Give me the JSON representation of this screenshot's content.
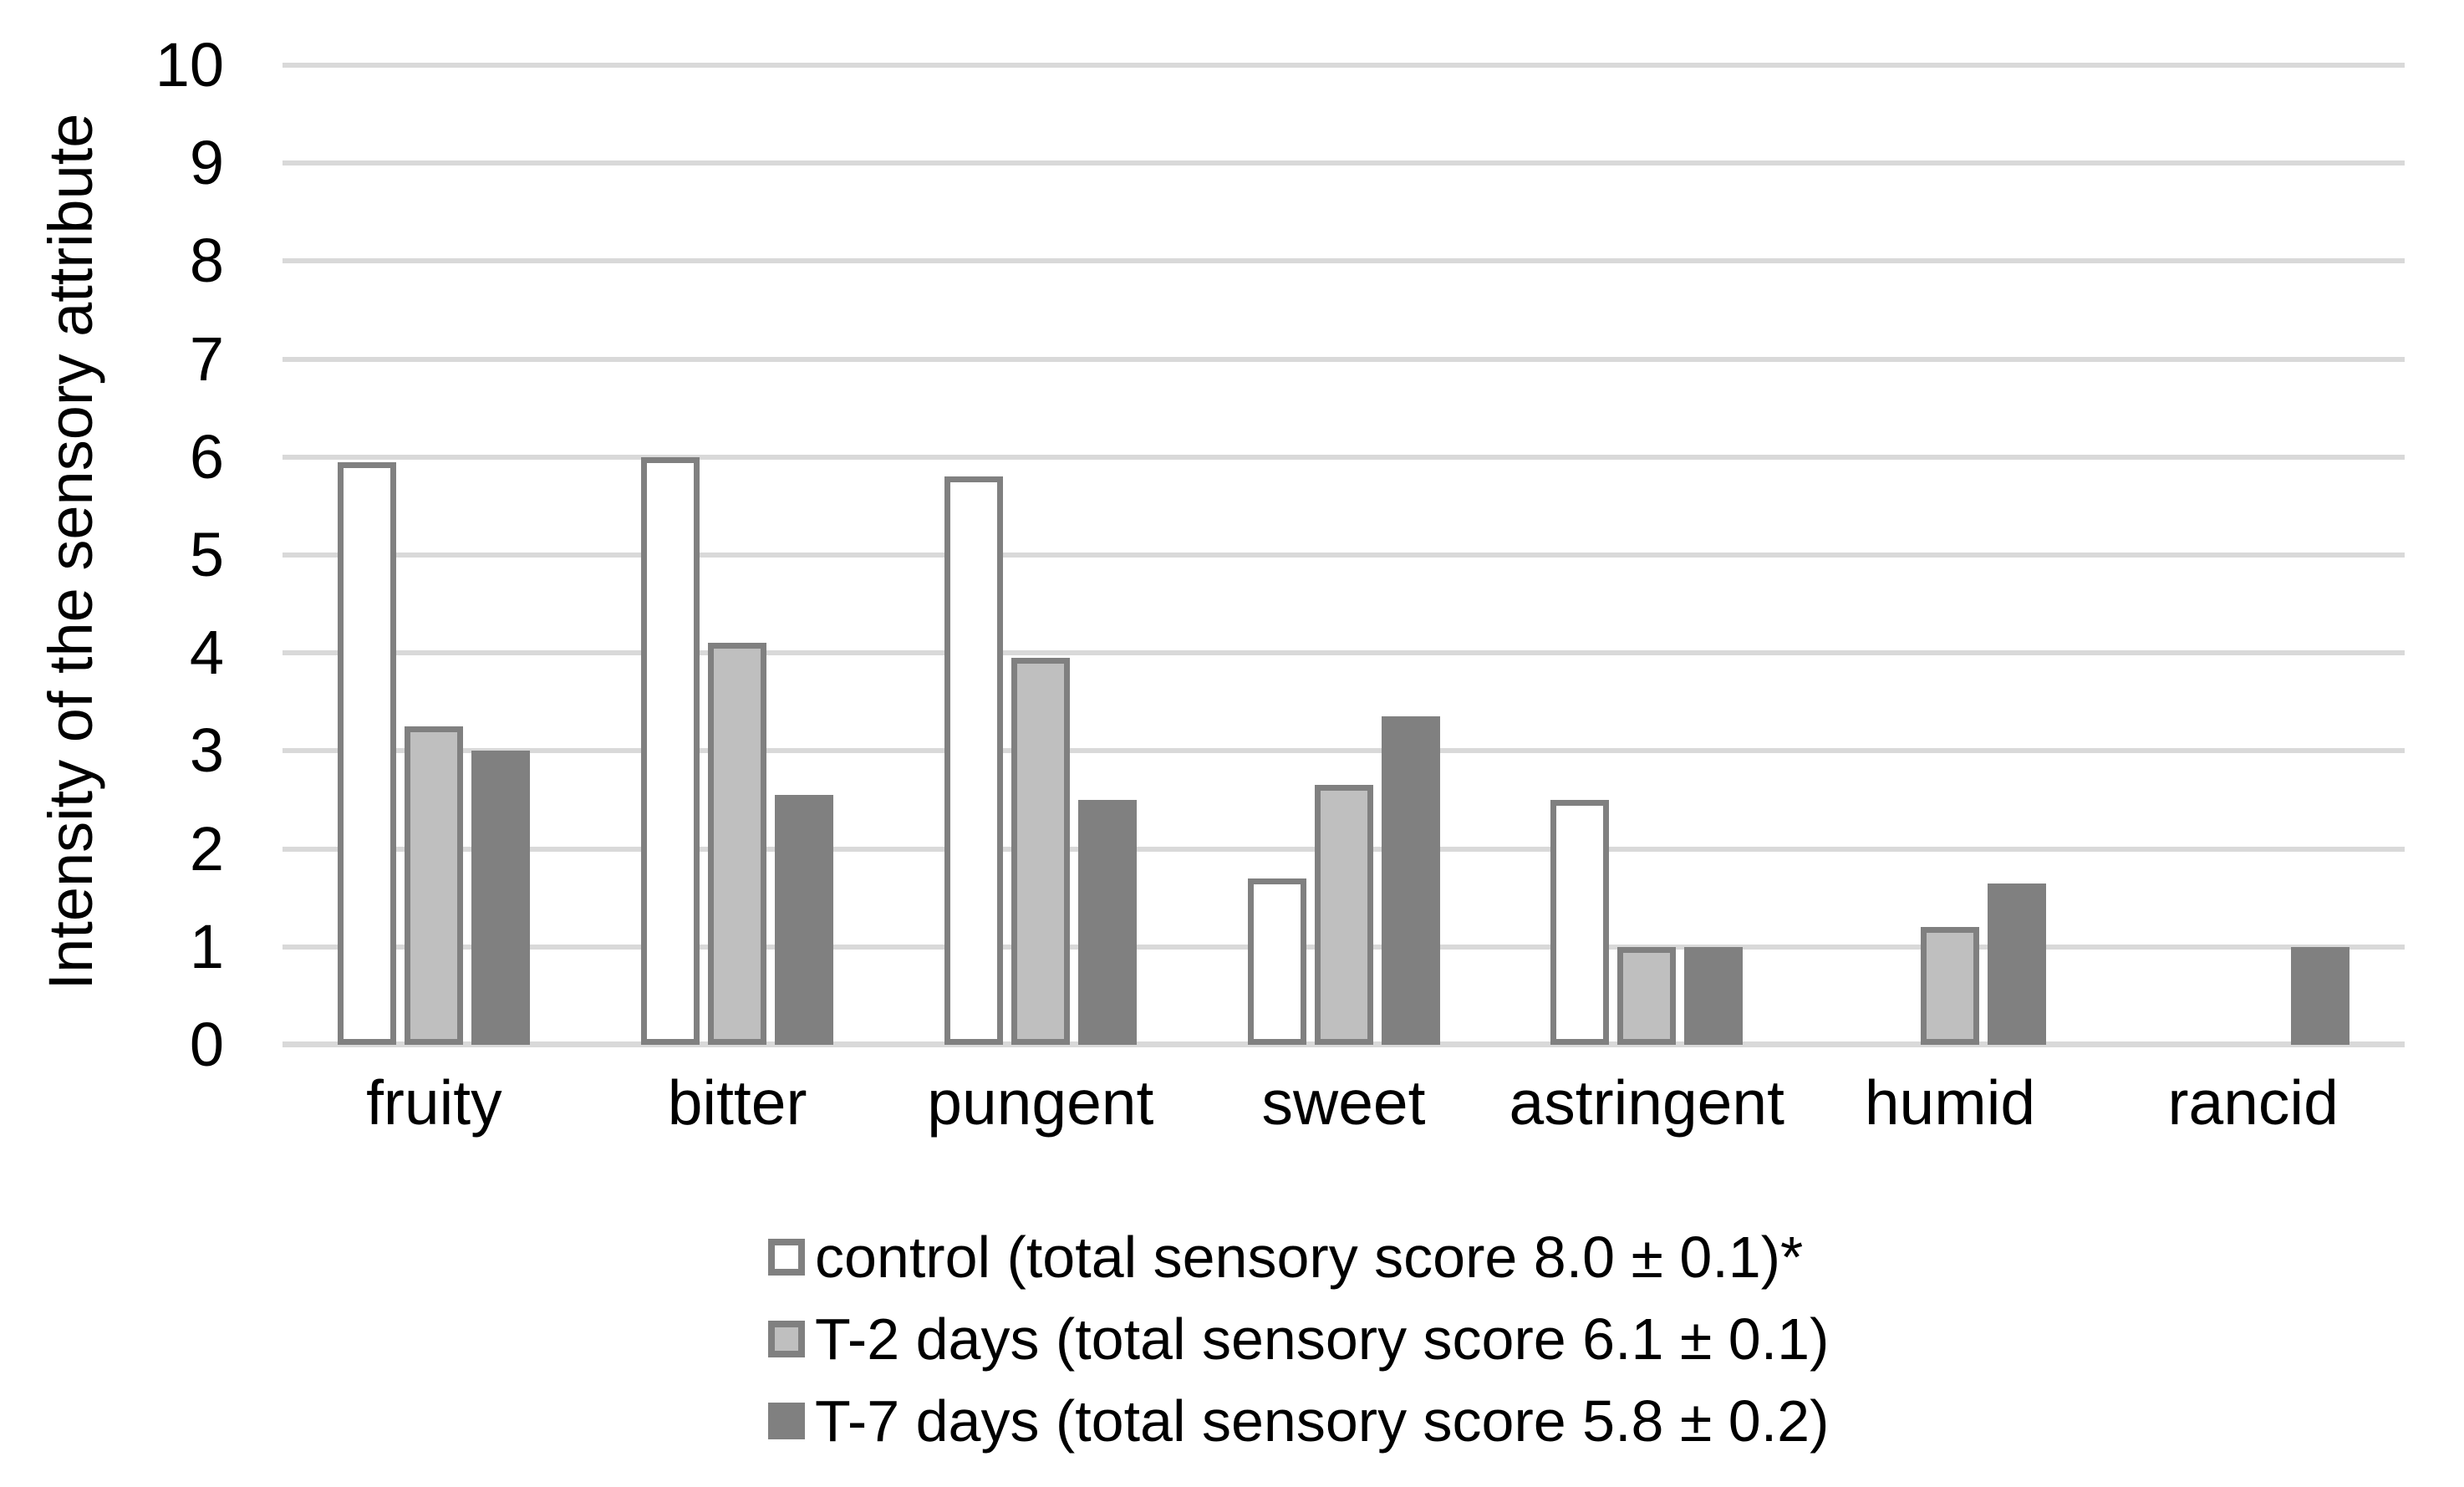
{
  "figure": {
    "y_axis_title": "Intensity of the sensory attribute"
  },
  "chart_data": {
    "type": "bar",
    "title": "",
    "xlabel": "",
    "ylabel": "Intensity of the sensory attribute",
    "ylim": [
      0,
      10
    ],
    "yticks": [
      0,
      1,
      2,
      3,
      4,
      5,
      6,
      7,
      8,
      9,
      10
    ],
    "grid": true,
    "legend_position": "bottom",
    "categories": [
      "fruity",
      "bitter",
      "pungent",
      "sweet",
      "astringent",
      "humid",
      "rancid"
    ],
    "series": [
      {
        "name": "control (total sensory score 8.0 ± 0.1)*",
        "fill": "#ffffff",
        "border": "#808080",
        "values": [
          5.95,
          6.0,
          5.8,
          1.7,
          2.5,
          0,
          0
        ]
      },
      {
        "name": "T-2 days (total sensory score 6.1 ± 0.1)",
        "fill": "#bfbfbf",
        "border": "#808080",
        "values": [
          3.25,
          4.1,
          3.95,
          2.65,
          1.0,
          1.2,
          0
        ]
      },
      {
        "name": "T-7 days (total sensory score 5.8 ± 0.2)",
        "fill": "#808080",
        "border": "#808080",
        "values": [
          3.0,
          2.55,
          2.5,
          3.35,
          1.0,
          1.65,
          1.0
        ]
      }
    ],
    "colors": {
      "gridline": "#d9d9d9",
      "axis_line": "#d9d9d9",
      "text": "#000000"
    }
  }
}
